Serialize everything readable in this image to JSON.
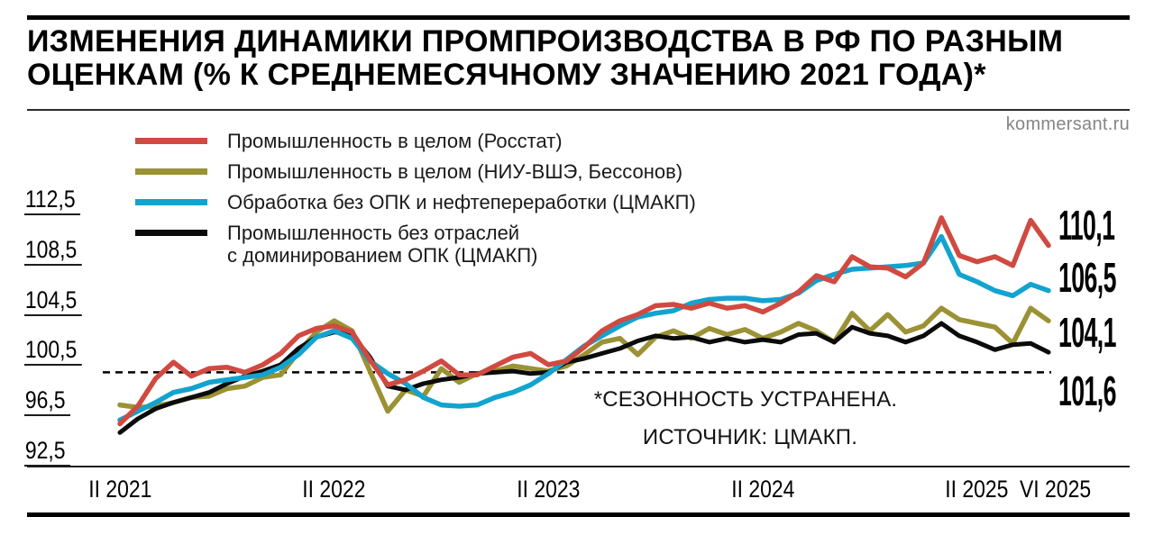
{
  "header": {
    "title_line1": "ИЗМЕНЕНИЯ ДИНАМИКИ ПРОМПРОИЗВОДСТВА В РФ ПО РАЗНЫМ",
    "title_line2": "ОЦЕНКАМ (% К СРЕДНЕМЕСЯЧНОМУ ЗНАЧЕНИЮ 2021 ГОДА)*",
    "watermark": "kommersant.ru"
  },
  "legend": [
    {
      "label": "Промышленность в целом (Росстат)",
      "color": "#d04a41"
    },
    {
      "label": "Промышленность в целом (НИУ-ВШЭ, Бессонов)",
      "color": "#9a9234"
    },
    {
      "label": "Обработка без ОПК и нефтепереработки (ЦМАКП)",
      "color": "#12a3cf"
    },
    {
      "label": "Промышленность без отраслей",
      "label2": "с доминированием ОПК (ЦМАКП)",
      "color": "#0b0b0b"
    }
  ],
  "annotations": {
    "note": "*СЕЗОННОСТЬ УСТРАНЕНА.",
    "source": "ИСТОЧНИК: ЦМАКП."
  },
  "chart_data": {
    "type": "line",
    "title": "ИЗМЕНЕНИЯ ДИНАМИКИ ПРОМПРОИЗВОДСТВА В РФ ПО РАЗНЫМ ОЦЕНКАМ (% К СРЕДНЕМЕСЯЧНОМУ ЗНАЧЕНИЮ 2021 ГОДА), СЕЗОННОСТЬ УСТРАНЕНА",
    "source": "ЦМАКП",
    "x_unit": "month",
    "x_start": "2021-02",
    "x_end": "2025-06",
    "n_points": 53,
    "baseline": 100,
    "ylim": [
      92.5,
      112.5
    ],
    "grid": false,
    "legend_position": "top-left",
    "y_ticks": [
      {
        "label": "112,5",
        "value": 112.5
      },
      {
        "label": "108,5",
        "value": 108.5
      },
      {
        "label": "104,5",
        "value": 104.5
      },
      {
        "label": "100,5",
        "value": 100.5
      },
      {
        "label": "96,5",
        "value": 96.5
      },
      {
        "label": "92,5",
        "value": 92.5
      }
    ],
    "x_ticks": [
      {
        "label": "II 2021",
        "month_index": 0
      },
      {
        "label": "II 2022",
        "month_index": 12
      },
      {
        "label": "II 2023",
        "month_index": 24
      },
      {
        "label": "II 2024",
        "month_index": 36
      },
      {
        "label": "II 2025",
        "month_index": 48
      },
      {
        "label": "VI 2025",
        "month_index": 52
      }
    ],
    "draw_order": [
      1,
      3,
      2,
      0
    ],
    "series": [
      {
        "id": "rosstat",
        "name": "Промышленность в целом (Росстат)",
        "color": "#d04a41",
        "end_label": "110,1",
        "end_value": 110.1,
        "values": [
          95.9,
          97.3,
          99.5,
          100.8,
          99.7,
          100.3,
          100.4,
          100.0,
          100.6,
          101.5,
          102.9,
          103.5,
          103.7,
          103.2,
          101.0,
          99.0,
          99.4,
          100.1,
          100.9,
          99.8,
          99.8,
          100.5,
          101.2,
          101.5,
          100.6,
          100.9,
          102.0,
          103.3,
          104.1,
          104.6,
          105.3,
          105.4,
          105.1,
          105.5,
          105.1,
          105.3,
          104.8,
          105.5,
          106.4,
          107.7,
          107.2,
          109.2,
          108.4,
          108.3,
          107.6,
          108.7,
          112.3,
          109.3,
          108.8,
          109.2,
          108.5,
          112.1,
          110.1
        ]
      },
      {
        "id": "hse-bessonov",
        "name": "Промышленность в целом (НИУ-ВШЭ, Бессонов)",
        "color": "#9a9234",
        "end_label": "104,1",
        "end_value": 104.1,
        "values": [
          97.4,
          97.2,
          97.3,
          97.6,
          98.0,
          98.1,
          98.7,
          98.9,
          99.6,
          99.8,
          101.6,
          103.2,
          104.1,
          103.3,
          100.1,
          96.9,
          98.6,
          98.1,
          100.3,
          99.2,
          99.9,
          100.1,
          100.5,
          100.3,
          100.1,
          100.5,
          101.4,
          102.4,
          102.7,
          101.4,
          102.8,
          103.3,
          102.7,
          103.5,
          103.0,
          103.4,
          102.7,
          103.2,
          103.9,
          103.3,
          102.4,
          104.7,
          103.3,
          104.6,
          103.2,
          103.7,
          105.1,
          104.2,
          103.9,
          103.6,
          102.3,
          105.1,
          104.1
        ]
      },
      {
        "id": "cmasf-manufacturing",
        "name": "Обработка без ОПК и нефтепереработки (ЦМАКП)",
        "color": "#12a3cf",
        "end_label": "106,5",
        "end_value": 106.5,
        "values": [
          96.2,
          96.9,
          97.6,
          98.4,
          98.7,
          99.2,
          99.4,
          99.6,
          99.8,
          100.4,
          101.4,
          102.8,
          103.3,
          102.7,
          100.9,
          99.9,
          99.1,
          98.0,
          97.4,
          97.3,
          97.4,
          98.0,
          98.4,
          99.0,
          99.9,
          101.0,
          102.1,
          102.9,
          103.7,
          104.4,
          104.7,
          104.9,
          105.5,
          105.8,
          105.9,
          105.9,
          105.7,
          105.8,
          106.3,
          107.3,
          107.8,
          108.2,
          108.3,
          108.4,
          108.5,
          108.7,
          110.8,
          107.8,
          107.2,
          106.5,
          106.1,
          107.0,
          106.5
        ]
      },
      {
        "id": "cmasf-ex-defense",
        "name": "Промышленность без отраслей с доминированием ОПК (ЦМАКП)",
        "color": "#0b0b0b",
        "end_label": "101,6",
        "end_value": 101.6,
        "values": [
          95.2,
          96.3,
          97.1,
          97.6,
          98.0,
          98.4,
          99.1,
          99.7,
          100.1,
          100.6,
          101.9,
          102.8,
          103.2,
          103.0,
          101.2,
          98.9,
          98.6,
          99.1,
          99.4,
          99.6,
          99.9,
          100.0,
          100.1,
          99.9,
          100.0,
          100.8,
          101.1,
          101.5,
          101.9,
          102.5,
          102.9,
          102.7,
          102.8,
          102.4,
          102.7,
          102.4,
          102.6,
          102.4,
          103.0,
          103.1,
          102.4,
          103.6,
          103.1,
          102.9,
          102.4,
          102.9,
          103.9,
          102.9,
          102.4,
          101.8,
          102.2,
          102.3,
          101.6
        ]
      }
    ]
  }
}
